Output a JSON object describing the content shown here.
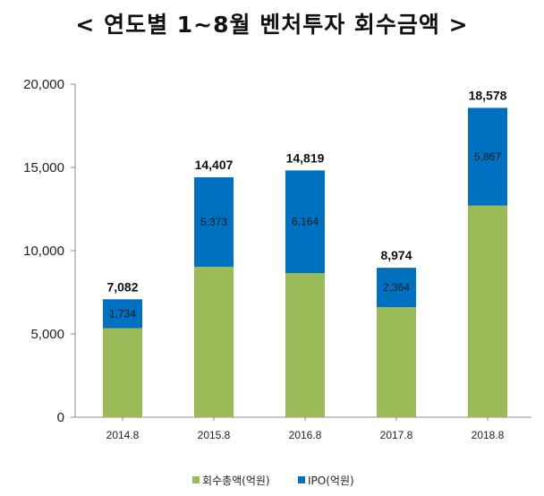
{
  "title": "< 연도별 1~8월 벤처투자 회수금액 >",
  "colors": {
    "recovery": "#9bbb59",
    "ipo": "#0070c0"
  },
  "chart_data": {
    "type": "bar",
    "stacked": true,
    "categories": [
      "2014.8",
      "2015.8",
      "2016.8",
      "2017.8",
      "2018.8"
    ],
    "series": [
      {
        "name": "회수총액(억원)",
        "values": [
          5348,
          9034,
          8655,
          6610,
          12711
        ]
      },
      {
        "name": "IPO(억원)",
        "values": [
          1734,
          5373,
          6164,
          2364,
          5867
        ],
        "labels": [
          "1,734",
          "5,373",
          "6,164",
          "2,364",
          "5,867"
        ]
      }
    ],
    "totals": [
      7082,
      14407,
      14819,
      8974,
      18578
    ],
    "total_labels": [
      "7,082",
      "14,407",
      "14,819",
      "8,974",
      "18,578"
    ],
    "ylim": [
      0,
      20000
    ],
    "yticks": [
      0,
      5000,
      10000,
      15000,
      20000
    ],
    "ytick_labels": [
      "0",
      "5,000",
      "10,000",
      "15,000",
      "20,000"
    ],
    "legend": "bottom",
    "grid": false
  }
}
